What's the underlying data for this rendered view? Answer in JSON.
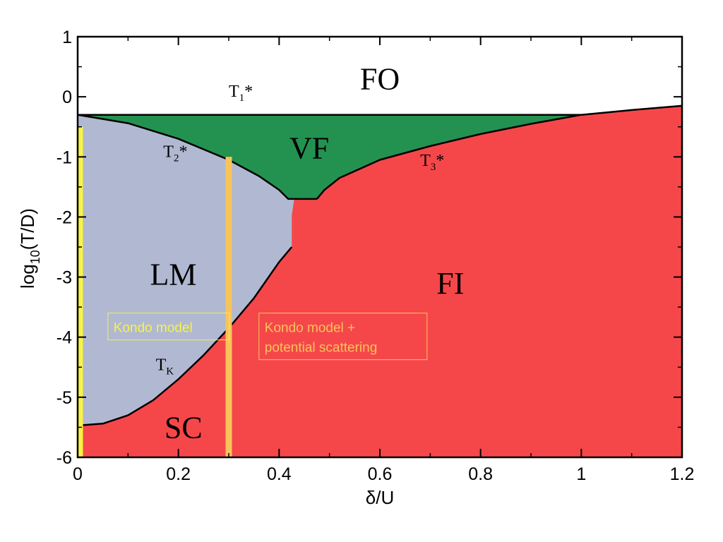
{
  "chart_data": {
    "type": "area",
    "title": "",
    "xlabel": "δ/U",
    "ylabel_main": "log",
    "ylabel_sub": "10",
    "ylabel_rest": "(T/D)",
    "xlim": [
      0,
      1.2
    ],
    "ylim": [
      -6,
      1
    ],
    "x_ticks": [
      "0",
      "0.2",
      "0.4",
      "0.6",
      "0.8",
      "1",
      "1.2"
    ],
    "y_ticks": [
      "1",
      "0",
      "-1",
      "-2",
      "-3",
      "-4",
      "-5",
      "-6"
    ],
    "colors": {
      "FO": "#ffffff",
      "VF": "#239250",
      "LM": "#b0b9d1",
      "FI": "#f5474a",
      "SC": "#f5474a",
      "boundary": "#000000",
      "kondo_line": "#f8f245",
      "kondo_ps_line": "#f8c35a"
    },
    "regions": [
      {
        "name": "FO",
        "label_x": 0.6,
        "label_y": 0.3
      },
      {
        "name": "VF",
        "label_x": 0.46,
        "label_y": -0.85
      },
      {
        "name": "LM",
        "label_x": 0.19,
        "label_y": -2.95
      },
      {
        "name": "FI",
        "label_x": 0.74,
        "label_y": -3.1
      },
      {
        "name": "SC",
        "label_x": 0.21,
        "label_y": -5.5
      }
    ],
    "curve_labels": [
      {
        "main": "T",
        "sub": "1",
        "suffix": "*",
        "x": 0.3,
        "y": 0.0
      },
      {
        "main": "T",
        "sub": "2",
        "suffix": "*",
        "x": 0.17,
        "y": -1.0
      },
      {
        "main": "T",
        "sub": "3",
        "suffix": "*",
        "x": 0.68,
        "y": -1.15
      },
      {
        "main": "T",
        "sub": "K",
        "suffix": "",
        "x": 0.155,
        "y": -4.55
      }
    ],
    "boundaries": {
      "T1_star": [
        [
          0.0,
          -0.3
        ],
        [
          1.0,
          -0.3
        ]
      ],
      "T2_star": [
        [
          0.0,
          -0.3
        ],
        [
          0.1,
          -0.44
        ],
        [
          0.2,
          -0.7
        ],
        [
          0.3,
          -1.05
        ],
        [
          0.36,
          -1.32
        ],
        [
          0.4,
          -1.55
        ],
        [
          0.418,
          -1.7
        ],
        [
          0.43,
          -1.7
        ]
      ],
      "T3_star": [
        [
          0.475,
          -1.7
        ],
        [
          0.49,
          -1.55
        ],
        [
          0.52,
          -1.35
        ],
        [
          0.6,
          -1.05
        ],
        [
          0.7,
          -0.82
        ],
        [
          0.8,
          -0.62
        ],
        [
          0.9,
          -0.45
        ],
        [
          1.0,
          -0.3
        ],
        [
          1.1,
          -0.22
        ],
        [
          1.2,
          -0.15
        ]
      ],
      "VF_bottom": [
        [
          0.43,
          -1.7
        ],
        [
          0.475,
          -1.7
        ]
      ],
      "TK": [
        [
          0.0,
          -5.47
        ],
        [
          0.05,
          -5.44
        ],
        [
          0.1,
          -5.3
        ],
        [
          0.15,
          -5.05
        ],
        [
          0.2,
          -4.7
        ],
        [
          0.25,
          -4.3
        ],
        [
          0.3,
          -3.85
        ],
        [
          0.35,
          -3.35
        ],
        [
          0.4,
          -2.75
        ],
        [
          0.425,
          -2.5
        ]
      ],
      "LM_FI_edge": [
        [
          0.425,
          -2.5
        ],
        [
          0.425,
          -1.98
        ],
        [
          0.43,
          -1.7
        ]
      ]
    },
    "vertical_lines": [
      {
        "name": "Kondo model",
        "x": 0.0,
        "y_top": -0.5,
        "y_bottom": -6.0
      },
      {
        "name": "Kondo model + potential scattering",
        "x": 0.3,
        "y_top": -1.0,
        "y_bottom": -6.0
      }
    ],
    "annotation_boxes": [
      {
        "lines": [
          "Kondo model"
        ],
        "x": 0.06,
        "y": -3.6,
        "color": "#f8f245"
      },
      {
        "lines": [
          "Kondo model +",
          "potential scattering"
        ],
        "x": 0.36,
        "y": -3.6,
        "color": "#f8c35a"
      }
    ]
  }
}
